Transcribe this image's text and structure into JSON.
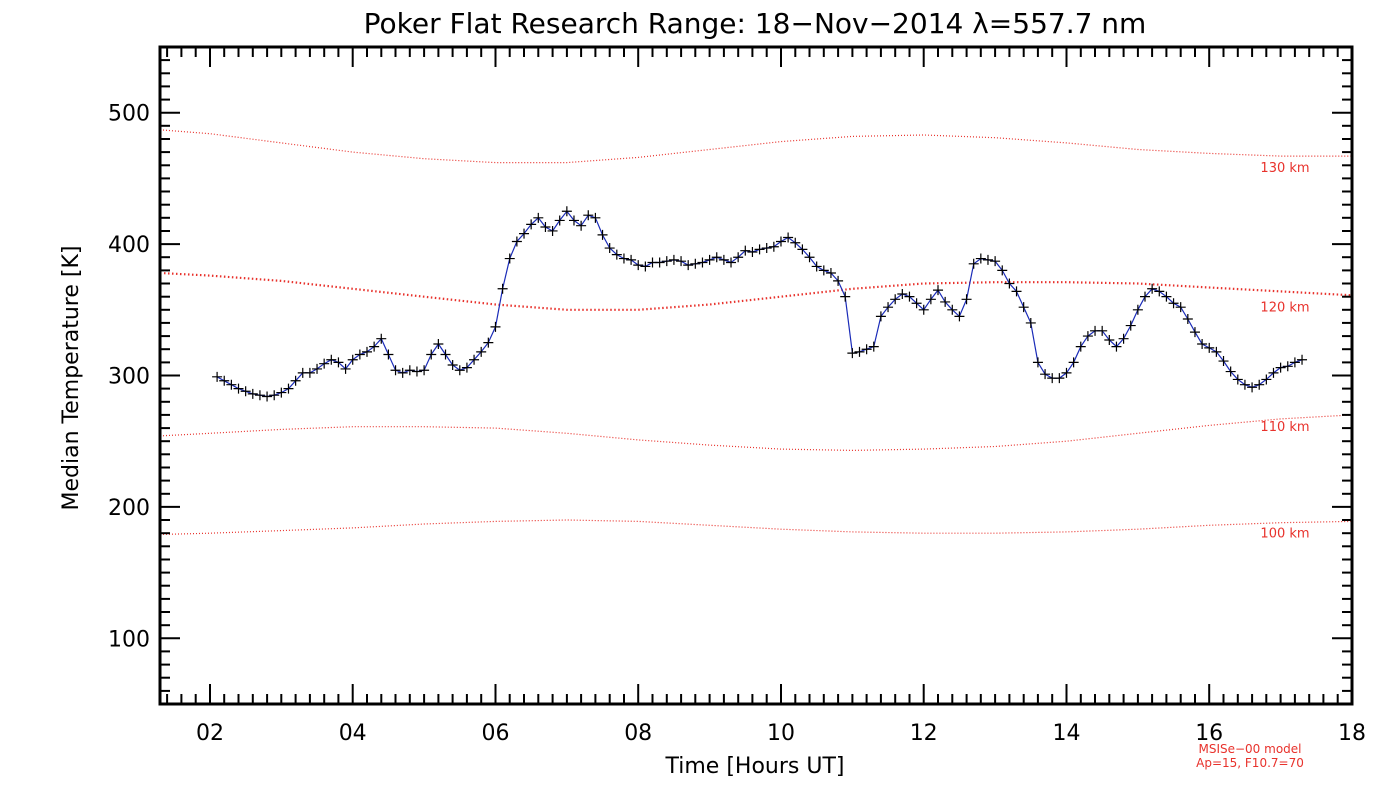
{
  "chart_data": {
    "type": "line",
    "title": "Poker Flat Research Range: 18−Nov−2014 λ=557.7 nm",
    "xlabel": "Time [Hours UT]",
    "ylabel": "Median Temperature [K]",
    "xlim": [
      1.3,
      18.0
    ],
    "ylim": [
      50,
      550
    ],
    "x_tick_labels": [
      "02",
      "04",
      "06",
      "08",
      "10",
      "12",
      "14",
      "16",
      "18"
    ],
    "x_tick_values": [
      2,
      4,
      6,
      8,
      10,
      12,
      14,
      16,
      18
    ],
    "y_tick_labels": [
      "100",
      "200",
      "300",
      "400",
      "500"
    ],
    "y_tick_values": [
      100,
      200,
      300,
      400,
      500
    ],
    "grid": false,
    "legend": "none",
    "series": [
      {
        "kind": "measured",
        "color": "#1a2bb8",
        "marker": "+",
        "marker_color": "#000000",
        "x": [
          2.1,
          2.2,
          2.3,
          2.4,
          2.5,
          2.6,
          2.7,
          2.8,
          2.9,
          3.0,
          3.1,
          3.2,
          3.3,
          3.4,
          3.5,
          3.6,
          3.7,
          3.8,
          3.9,
          4.0,
          4.1,
          4.2,
          4.3,
          4.4,
          4.5,
          4.6,
          4.7,
          4.8,
          4.9,
          5.0,
          5.1,
          5.2,
          5.3,
          5.4,
          5.5,
          5.6,
          5.7,
          5.8,
          5.9,
          6.0,
          6.1,
          6.2,
          6.3,
          6.4,
          6.5,
          6.6,
          6.7,
          6.8,
          6.9,
          7.0,
          7.1,
          7.2,
          7.3,
          7.4,
          7.5,
          7.6,
          7.7,
          7.8,
          7.9,
          8.0,
          8.1,
          8.2,
          8.3,
          8.4,
          8.5,
          8.6,
          8.7,
          8.8,
          8.9,
          9.0,
          9.1,
          9.2,
          9.3,
          9.4,
          9.5,
          9.6,
          9.7,
          9.8,
          9.9,
          10.0,
          10.1,
          10.2,
          10.3,
          10.4,
          10.5,
          10.6,
          10.7,
          10.8,
          10.9,
          11.0,
          11.1,
          11.2,
          11.3,
          11.4,
          11.5,
          11.6,
          11.7,
          11.8,
          11.9,
          12.0,
          12.1,
          12.2,
          12.3,
          12.4,
          12.5,
          12.6,
          12.7,
          12.8,
          12.9,
          13.0,
          13.1,
          13.2,
          13.3,
          13.4,
          13.5,
          13.6,
          13.7,
          13.8,
          13.9,
          14.0,
          14.1,
          14.2,
          14.3,
          14.4,
          14.5,
          14.6,
          14.7,
          14.8,
          14.9,
          15.0,
          15.1,
          15.2,
          15.3,
          15.4,
          15.5,
          15.6,
          15.7,
          15.8,
          15.9,
          16.0,
          16.1,
          16.2,
          16.3,
          16.4,
          16.5,
          16.6,
          16.7,
          16.8,
          16.9,
          17.0,
          17.1,
          17.2,
          17.3
        ],
        "y": [
          299,
          296,
          293,
          290,
          288,
          286,
          285,
          284,
          285,
          287,
          290,
          296,
          302,
          302,
          305,
          309,
          312,
          310,
          305,
          312,
          316,
          318,
          322,
          328,
          316,
          304,
          302,
          304,
          303,
          304,
          316,
          324,
          316,
          308,
          304,
          306,
          312,
          318,
          325,
          337,
          366,
          389,
          402,
          408,
          415,
          420,
          413,
          410,
          418,
          425,
          418,
          414,
          422,
          420,
          407,
          397,
          392,
          389,
          388,
          384,
          383,
          386,
          386,
          387,
          388,
          387,
          384,
          385,
          386,
          388,
          390,
          388,
          386,
          390,
          395,
          394,
          396,
          397,
          398,
          402,
          405,
          401,
          396,
          390,
          383,
          380,
          378,
          372,
          360,
          317,
          318,
          320,
          322,
          345,
          352,
          358,
          362,
          360,
          355,
          350,
          358,
          365,
          356,
          350,
          345,
          358,
          385,
          389,
          388,
          387,
          380,
          370,
          364,
          352,
          340,
          310,
          301,
          298,
          298,
          302,
          310,
          322,
          330,
          334,
          334,
          327,
          322,
          328,
          338,
          350,
          360,
          366,
          364,
          360,
          355,
          352,
          343,
          333,
          324,
          321,
          318,
          311,
          303,
          297,
          293,
          291,
          293,
          297,
          302,
          306,
          307,
          310,
          312
        ]
      },
      {
        "kind": "model",
        "name": "130 km",
        "color": "#e8322c",
        "width": 1.2,
        "dash": "1,2",
        "x": [
          1.3,
          2.0,
          3.0,
          4.0,
          5.0,
          6.0,
          7.0,
          8.0,
          9.0,
          10.0,
          11.0,
          12.0,
          13.0,
          14.0,
          15.0,
          16.0,
          17.0,
          18.0
        ],
        "y": [
          487,
          484,
          477,
          470,
          465,
          462,
          462,
          466,
          472,
          478,
          482,
          483,
          481,
          477,
          472,
          469,
          467,
          467
        ]
      },
      {
        "kind": "model",
        "name": "120 km",
        "color": "#e8322c",
        "width": 2.2,
        "dash": "1.5,2.5",
        "x": [
          1.3,
          2.0,
          3.0,
          4.0,
          5.0,
          6.0,
          7.0,
          8.0,
          9.0,
          10.0,
          11.0,
          12.0,
          13.0,
          14.0,
          15.0,
          16.0,
          17.0,
          18.0
        ],
        "y": [
          378,
          376,
          372,
          366,
          360,
          354,
          350,
          350,
          354,
          360,
          366,
          370,
          371,
          371,
          370,
          367,
          364,
          361
        ]
      },
      {
        "kind": "model",
        "name": "110 km",
        "color": "#e8322c",
        "width": 1.2,
        "dash": "1,2",
        "x": [
          1.3,
          2.0,
          3.0,
          4.0,
          5.0,
          6.0,
          7.0,
          8.0,
          9.0,
          10.0,
          11.0,
          12.0,
          13.0,
          14.0,
          15.0,
          16.0,
          17.0,
          18.0
        ],
        "y": [
          254,
          256,
          259,
          261,
          261,
          260,
          256,
          251,
          247,
          244,
          243,
          244,
          246,
          250,
          256,
          262,
          267,
          270
        ]
      },
      {
        "kind": "model",
        "name": "100 km",
        "color": "#e8322c",
        "width": 1.2,
        "dash": "1,2",
        "x": [
          1.3,
          2.0,
          3.0,
          4.0,
          5.0,
          6.0,
          7.0,
          8.0,
          9.0,
          10.0,
          11.0,
          12.0,
          13.0,
          14.0,
          15.0,
          16.0,
          17.0,
          18.0
        ],
        "y": [
          179,
          180,
          182,
          184,
          187,
          189,
          190,
          189,
          186,
          183,
          181,
          180,
          180,
          181,
          183,
          186,
          188,
          189
        ]
      }
    ],
    "credit_lines": [
      "MSISe−00 model",
      "Ap=15, F10.7=70"
    ]
  }
}
